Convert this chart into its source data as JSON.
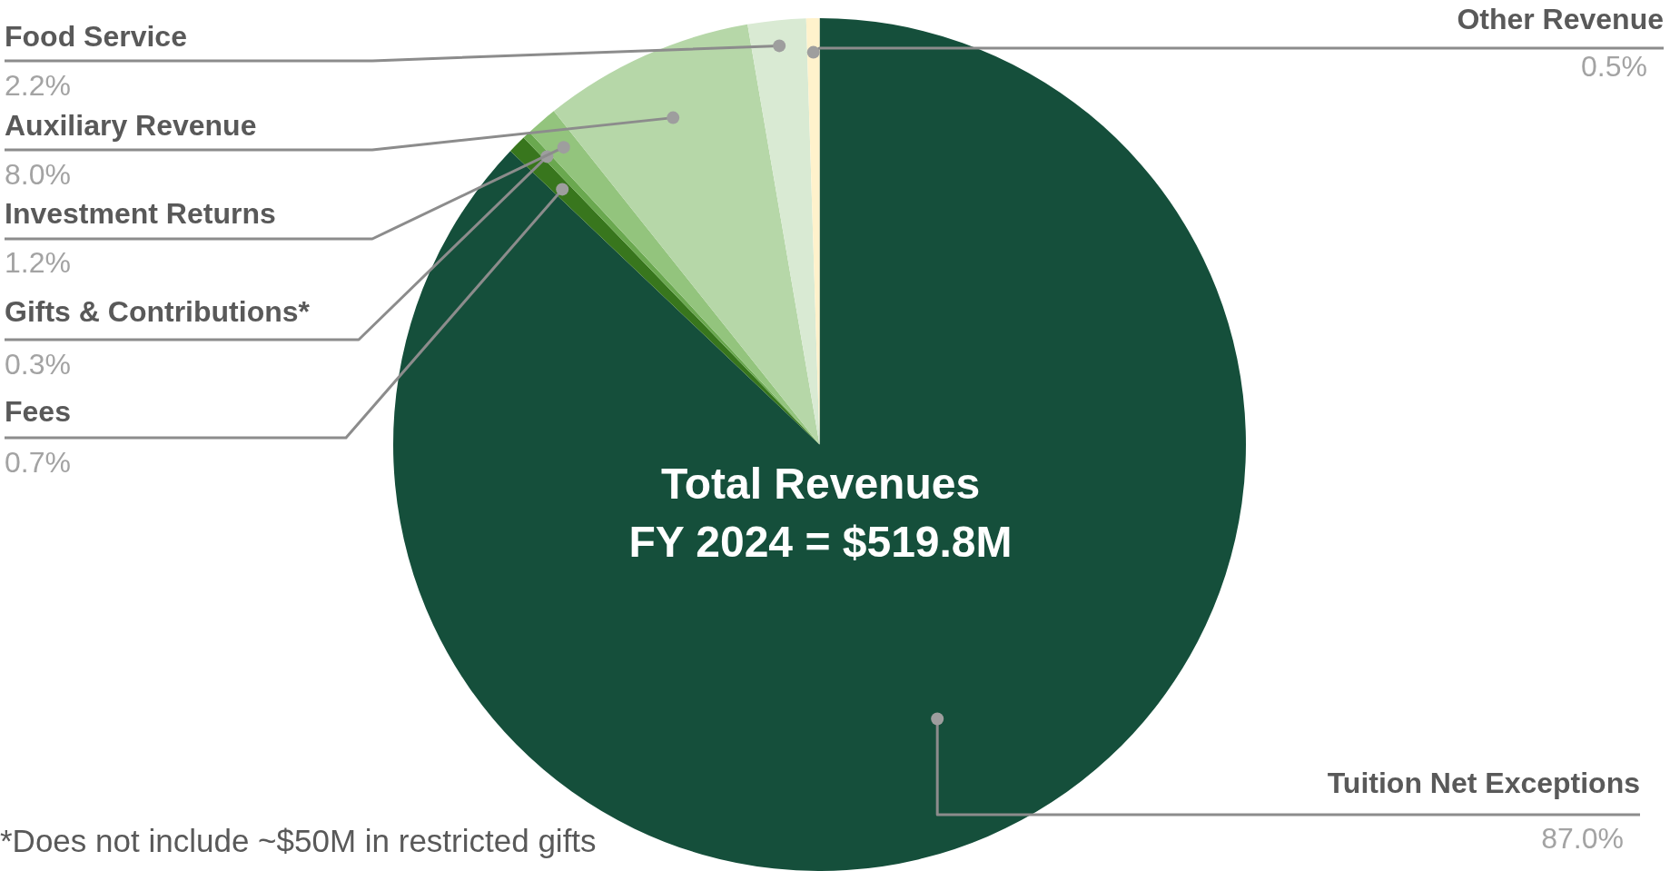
{
  "chart_data": {
    "type": "pie",
    "title": "Total Revenues",
    "subtitle": "FY 2024 = $519.8M",
    "categories": [
      "Tuition Net Exceptions",
      "Fees",
      "Gifts & Contributions*",
      "Investment Returns",
      "Auxiliary Revenue",
      "Food Service",
      "Other Revenue"
    ],
    "values": [
      87.0,
      0.7,
      0.3,
      1.2,
      8.0,
      2.2,
      0.5
    ],
    "value_labels": [
      "87.0%",
      "0.7%",
      "0.3%",
      "1.2%",
      "8.0%",
      "2.2%",
      "0.5%"
    ],
    "colors": [
      "#154f3b",
      "#38761d",
      "#6aa84f",
      "#93c47d",
      "#b6d7a8",
      "#d9ead3",
      "#fff2cc"
    ],
    "legend": false,
    "annotations": [
      "*Does not include ~$50M in restricted gifts"
    ]
  }
}
